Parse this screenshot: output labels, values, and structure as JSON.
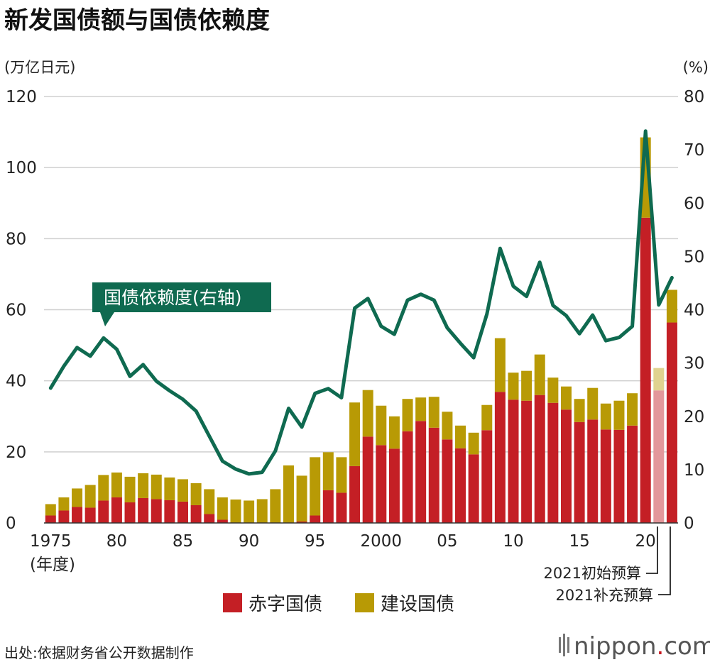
{
  "chart_data": {
    "type": "bar",
    "title": "新发国债额与国债依赖度",
    "left_unit": "(万亿日元)",
    "right_unit": "(%)",
    "x_unit": "(年度)",
    "ylim": [
      0,
      120
    ],
    "y2lim": [
      0,
      80
    ],
    "left_ticks": [
      "0",
      "20",
      "40",
      "60",
      "80",
      "100",
      "120"
    ],
    "right_ticks": [
      "0",
      "10",
      "20",
      "30",
      "40",
      "50",
      "60",
      "70",
      "80"
    ],
    "x_tick_labels": [
      {
        "year": 1975,
        "label": "1975"
      },
      {
        "year": 1980,
        "label": "80"
      },
      {
        "year": 1985,
        "label": "85"
      },
      {
        "year": 1990,
        "label": "90"
      },
      {
        "year": 1995,
        "label": "95"
      },
      {
        "year": 2000,
        "label": "2000"
      },
      {
        "year": 2005,
        "label": "05"
      },
      {
        "year": 2010,
        "label": "10"
      },
      {
        "year": 2015,
        "label": "15"
      },
      {
        "year": 2020,
        "label": "20"
      }
    ],
    "categories": [
      "1975",
      "1976",
      "1977",
      "1978",
      "1979",
      "1980",
      "1981",
      "1982",
      "1983",
      "1984",
      "1985",
      "1986",
      "1987",
      "1988",
      "1989",
      "1990",
      "1991",
      "1992",
      "1993",
      "1994",
      "1995",
      "1996",
      "1997",
      "1998",
      "1999",
      "2000",
      "2001",
      "2002",
      "2003",
      "2004",
      "2005",
      "2006",
      "2007",
      "2008",
      "2009",
      "2010",
      "2011",
      "2012",
      "2013",
      "2014",
      "2015",
      "2016",
      "2017",
      "2018",
      "2019",
      "2020",
      "2021初始预算",
      "2021补充预算"
    ],
    "series": [
      {
        "name": "赤字国债",
        "color": "#c41f25",
        "values": [
          2.1,
          3.5,
          4.5,
          4.3,
          6.3,
          7.2,
          5.8,
          7.0,
          6.7,
          6.4,
          6.0,
          5.0,
          2.5,
          0.9,
          0,
          0,
          0,
          0,
          0,
          0.4,
          2.1,
          9.2,
          8.5,
          16.0,
          24.3,
          21.9,
          20.9,
          25.8,
          28.7,
          26.8,
          23.5,
          21.0,
          19.3,
          26.1,
          36.9,
          34.7,
          34.4,
          36.0,
          33.8,
          31.9,
          28.4,
          29.1,
          26.3,
          26.2,
          27.4,
          85.9,
          37.3,
          56.4
        ]
      },
      {
        "name": "建设国债",
        "color": "#b89a05",
        "values": [
          3.2,
          3.7,
          5.2,
          6.4,
          7.2,
          7.0,
          7.2,
          7.0,
          6.9,
          6.4,
          6.3,
          6.2,
          7.0,
          6.3,
          6.6,
          6.3,
          6.7,
          9.5,
          16.2,
          12.9,
          16.4,
          10.7,
          10.0,
          17.9,
          13.1,
          11.1,
          9.1,
          9.1,
          6.6,
          8.7,
          7.8,
          6.4,
          6.1,
          7.1,
          15.1,
          7.6,
          8.4,
          11.4,
          7.1,
          6.5,
          6.5,
          8.9,
          7.3,
          8.2,
          9.1,
          22.6,
          6.3,
          9.2
        ]
      }
    ],
    "line_series": {
      "name": "国债依赖度(右轴)",
      "color": "#0f6a50",
      "x": [
        1975,
        1976,
        1977,
        1978,
        1979,
        1980,
        1981,
        1982,
        1983,
        1984,
        1985,
        1986,
        1987,
        1988,
        1989,
        1990,
        1991,
        1992,
        1993,
        1994,
        1995,
        1996,
        1997,
        1998,
        1999,
        2000,
        2001,
        2002,
        2003,
        2004,
        2005,
        2006,
        2007,
        2008,
        2009,
        2010,
        2011,
        2012,
        2013,
        2014,
        2015,
        2016,
        2017,
        2018,
        2019,
        2020,
        2021,
        2022
      ],
      "values": [
        25.3,
        29.4,
        32.9,
        31.3,
        34.7,
        32.6,
        27.5,
        29.7,
        26.6,
        24.8,
        23.2,
        21.0,
        16.3,
        11.6,
        10.1,
        9.2,
        9.5,
        13.5,
        21.5,
        18.0,
        24.3,
        25.2,
        23.5,
        40.3,
        42.1,
        36.9,
        35.4,
        41.8,
        42.9,
        41.8,
        36.6,
        33.7,
        31.0,
        39.2,
        51.5,
        44.4,
        42.5,
        48.9,
        40.8,
        38.9,
        35.5,
        39.0,
        34.2,
        34.8,
        36.9,
        73.5,
        40.9,
        46.0
      ]
    },
    "callout": "国债依赖度(右轴)",
    "notes": [
      "2021初始预算",
      "2021补充预算"
    ],
    "legend": [
      {
        "label": "赤字国债",
        "color": "#c41f25"
      },
      {
        "label": "建设国债",
        "color": "#b89a05"
      }
    ],
    "source": "出处:依据财务省公开数据制作",
    "brand": {
      "main": "nippon",
      "dot": ".",
      "tld": "com"
    },
    "faded_colors": {
      "red": "#e3979b",
      "gold": "#e0d38f"
    },
    "grid": true,
    "legend_position": "bottom"
  }
}
